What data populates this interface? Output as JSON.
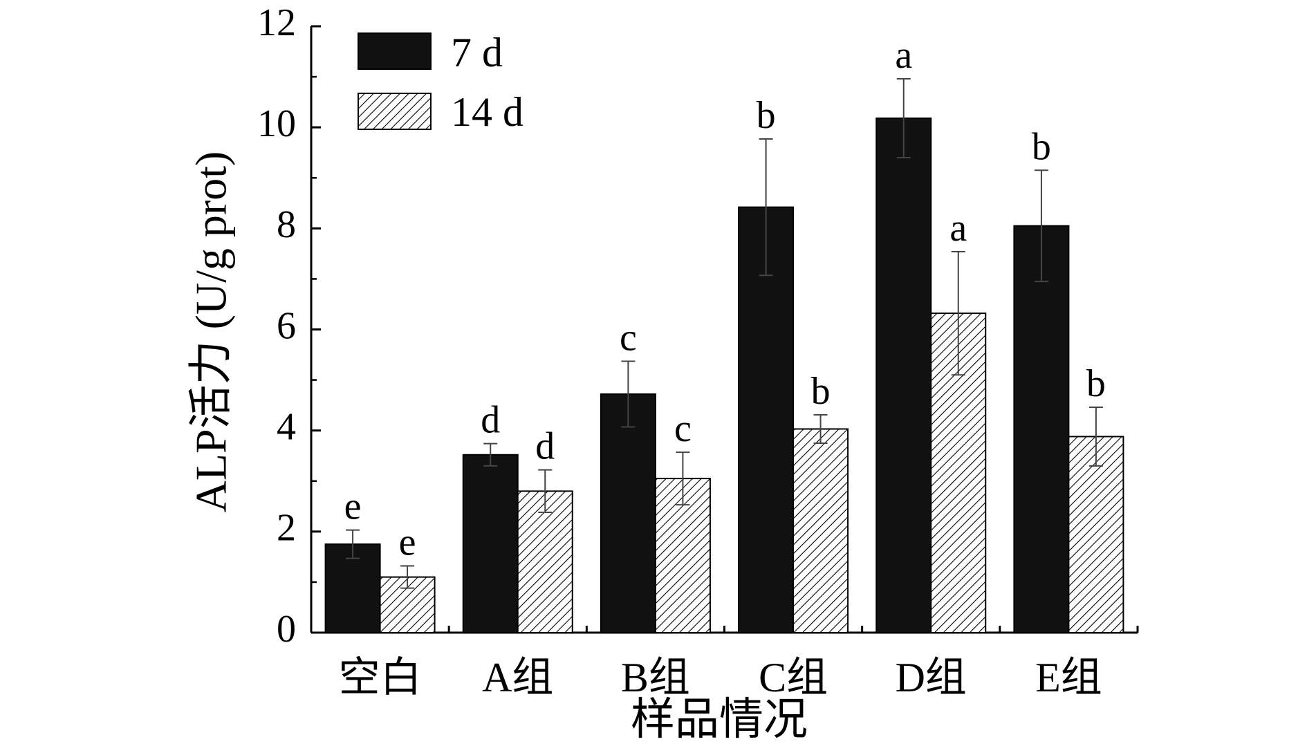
{
  "chart_data": {
    "type": "bar",
    "xlabel": "样品情况",
    "ylabel": "ALP活力 (U/g prot)",
    "ylim": [
      0,
      12
    ],
    "yticks": [
      "0",
      "2",
      "4",
      "6",
      "8",
      "10",
      "12"
    ],
    "categories": [
      "空白",
      "A组",
      "B组",
      "C组",
      "D组",
      "E组"
    ],
    "legend_position": "top-left",
    "grid": false,
    "series": [
      {
        "name": "7 d",
        "fill": "solid",
        "color": "#111111",
        "values": [
          1.75,
          3.52,
          4.72,
          8.42,
          10.18,
          8.05
        ],
        "errors": [
          0.28,
          0.22,
          0.65,
          1.35,
          0.78,
          1.1
        ],
        "labels": [
          "e",
          "d",
          "c",
          "b",
          "a",
          "b"
        ]
      },
      {
        "name": "14 d",
        "fill": "hatched",
        "color": "#ffffff",
        "values": [
          1.1,
          2.8,
          3.05,
          4.03,
          6.32,
          3.88
        ],
        "errors": [
          0.22,
          0.42,
          0.52,
          0.28,
          1.22,
          0.58
        ],
        "labels": [
          "e",
          "d",
          "c",
          "b",
          "a",
          "b"
        ]
      }
    ]
  }
}
